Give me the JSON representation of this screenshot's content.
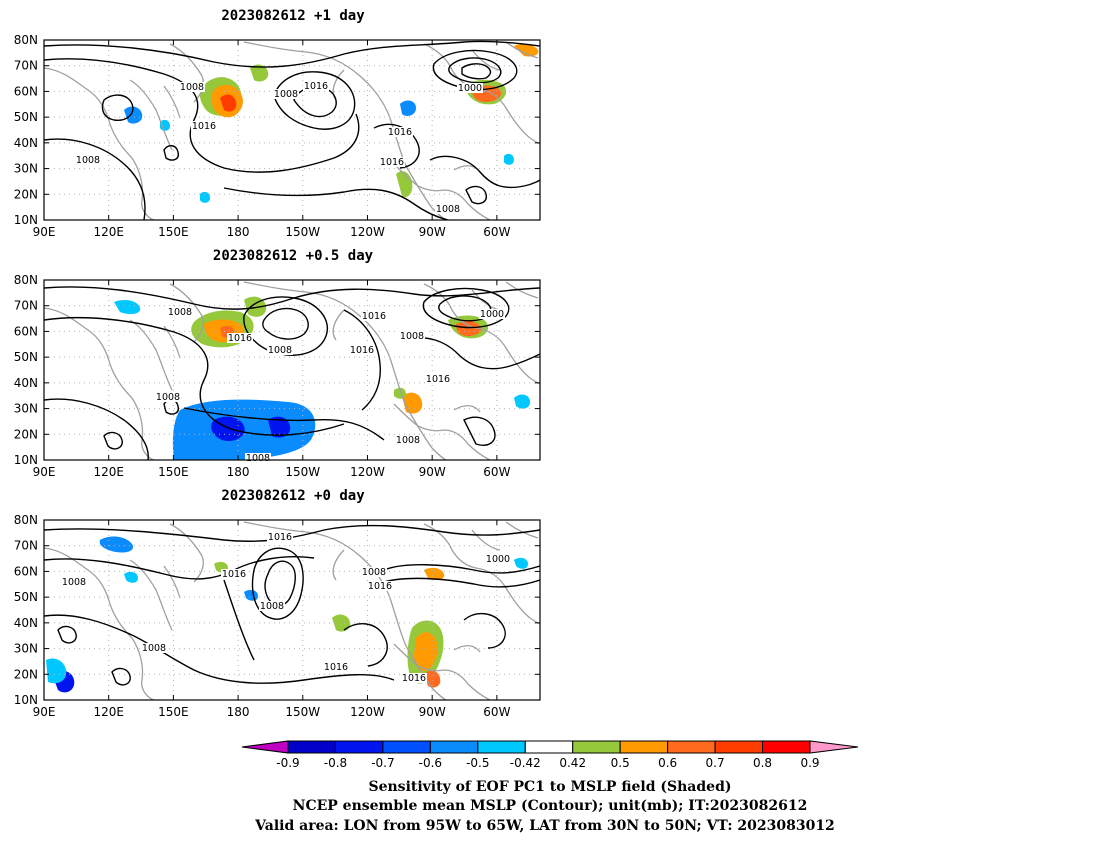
{
  "panels": [
    {
      "title": "2023082612  +1 day",
      "contour_labels": [
        "1008",
        "1008",
        "1016",
        "1016",
        "1008",
        "1000",
        "1016",
        "1016",
        "1008"
      ]
    },
    {
      "title": "2023082612  +0.5 day",
      "contour_labels": [
        "1008",
        "1016",
        "1008",
        "1016",
        "1016",
        "1000",
        "1008",
        "1016",
        "1008",
        "1008",
        "1008"
      ]
    },
    {
      "title": "2023082612  +0 day",
      "contour_labels": [
        "1016",
        "1016",
        "1008",
        "1008",
        "1008",
        "1016",
        "1000",
        "1008",
        "1016",
        "1016"
      ]
    }
  ],
  "axes": {
    "lon_ticks": [
      "90E",
      "120E",
      "150E",
      "180",
      "150W",
      "120W",
      "90W",
      "60W"
    ],
    "lat_ticks": [
      "80N",
      "70N",
      "60N",
      "50N",
      "40N",
      "30N",
      "20N",
      "10N"
    ],
    "lon_range": [
      90,
      320
    ],
    "lat_range": [
      10,
      80
    ]
  },
  "colorbar": {
    "labels": [
      "-0.9",
      "-0.8",
      "-0.7",
      "-0.6",
      "-0.5",
      "-0.42",
      "0.42",
      "0.5",
      "0.6",
      "0.7",
      "0.8",
      "0.9"
    ],
    "colors": [
      "#c000c0",
      "#0000c8",
      "#0014f0",
      "#0050ff",
      "#0a8cff",
      "#00c8ff",
      "#ffffff",
      "#96c83c",
      "#ff9a00",
      "#ff6a1e",
      "#ff3c00",
      "#ff0000",
      "#ff99cc"
    ]
  },
  "caption": {
    "line1": "Sensitivity of EOF PC1 to MSLP field (Shaded)",
    "line2": "NCEP ensemble mean MSLP (Contour); unit(mb); IT:2023082612",
    "line3": "Valid area: LON from 95W to 65W, LAT from 30N to 50N; VT: 2023083012"
  },
  "style": {
    "contour_color": "#000000",
    "coast_color": "#a0a0a0",
    "grid_color": "#b4b4b4"
  }
}
